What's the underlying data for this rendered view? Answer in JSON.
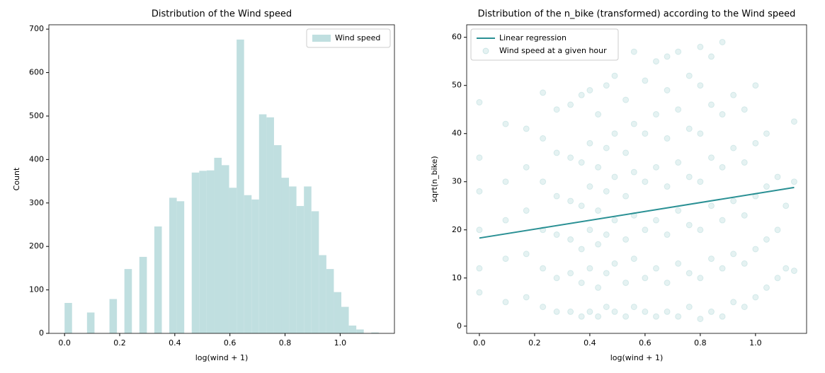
{
  "chart_data": [
    {
      "type": "histogram",
      "title": "Distribution of the Wind speed",
      "xlabel": "log(wind + 1)",
      "ylabel": "Count",
      "bins": [
        0,
        0.0271,
        0.0543,
        0.0814,
        0.1086,
        0.1357,
        0.1629,
        0.19,
        0.2171,
        0.2443,
        0.2714,
        0.2986,
        0.3257,
        0.3529,
        0.38,
        0.4071,
        0.4343,
        0.4614,
        0.4886,
        0.5157,
        0.5429,
        0.57,
        0.5971,
        0.6243,
        0.6514,
        0.6786,
        0.7057,
        0.7329,
        0.76,
        0.7871,
        0.8143,
        0.8414,
        0.8686,
        0.8957,
        0.9229,
        0.95,
        0.9771,
        1.0043,
        1.0314,
        1.0586,
        1.0857,
        1.1129,
        1.14
      ],
      "series": [
        {
          "name": "Wind speed",
          "color": "#c0dfe0",
          "values": [
            70,
            0,
            0,
            48,
            0,
            0,
            79,
            0,
            148,
            0,
            176,
            0,
            246,
            0,
            312,
            304,
            0,
            370,
            374,
            375,
            404,
            387,
            335,
            676,
            318,
            308,
            504,
            497,
            433,
            358,
            338,
            293,
            338,
            281,
            180,
            148,
            95,
            61,
            18,
            9,
            0,
            2
          ]
        }
      ],
      "xlim": [
        -0.057,
        1.197
      ],
      "ylim": [
        0,
        710
      ],
      "xticks": [
        {
          "value": 0,
          "label": "0.0"
        },
        {
          "value": 0.2,
          "label": "0.2"
        },
        {
          "value": 0.4,
          "label": "0.4"
        },
        {
          "value": 0.6,
          "label": "0.6"
        },
        {
          "value": 0.8,
          "label": "0.8"
        },
        {
          "value": 1.0,
          "label": "1.0"
        }
      ],
      "yticks": [
        0,
        100,
        200,
        300,
        400,
        500,
        600,
        700
      ],
      "legend": "upper right"
    },
    {
      "type": "scatter",
      "title": "Distribution of the n_bike (transformed) according to the Wind speed",
      "xlabel": "log(wind + 1)",
      "ylabel": "sqrt(n_bike)",
      "series": [
        {
          "name": "Linear regression",
          "type": "line",
          "color": "#2a9094",
          "x": [
            0,
            1.14
          ],
          "values": [
            18.3,
            28.8
          ]
        },
        {
          "name": "Wind speed at a given hour",
          "type": "scatter",
          "color": "#008080",
          "x": [
            0,
            0,
            0,
            0,
            0,
            0,
            0.095,
            0.095,
            0.095,
            0.095,
            0.095,
            0.17,
            0.17,
            0.17,
            0.17,
            0.17,
            0.23,
            0.23,
            0.23,
            0.23,
            0.23,
            0.23,
            0.28,
            0.28,
            0.28,
            0.28,
            0.28,
            0.28,
            0.33,
            0.33,
            0.33,
            0.33,
            0.33,
            0.33,
            0.37,
            0.37,
            0.37,
            0.37,
            0.37,
            0.37,
            0.4,
            0.4,
            0.4,
            0.4,
            0.4,
            0.4,
            0.43,
            0.43,
            0.43,
            0.43,
            0.43,
            0.43,
            0.46,
            0.46,
            0.46,
            0.46,
            0.46,
            0.46,
            0.49,
            0.49,
            0.49,
            0.49,
            0.49,
            0.49,
            0.53,
            0.53,
            0.53,
            0.53,
            0.53,
            0.53,
            0.56,
            0.56,
            0.56,
            0.56,
            0.56,
            0.56,
            0.6,
            0.6,
            0.6,
            0.6,
            0.6,
            0.6,
            0.64,
            0.64,
            0.64,
            0.64,
            0.64,
            0.64,
            0.68,
            0.68,
            0.68,
            0.68,
            0.68,
            0.68,
            0.68,
            0.72,
            0.72,
            0.72,
            0.72,
            0.72,
            0.72,
            0.76,
            0.76,
            0.76,
            0.76,
            0.76,
            0.76,
            0.8,
            0.8,
            0.8,
            0.8,
            0.8,
            0.8,
            0.8,
            0.84,
            0.84,
            0.84,
            0.84,
            0.84,
            0.84,
            0.88,
            0.88,
            0.88,
            0.88,
            0.88,
            0.88,
            0.92,
            0.92,
            0.92,
            0.92,
            0.92,
            0.96,
            0.96,
            0.96,
            0.96,
            0.96,
            1.0,
            1.0,
            1.0,
            1.0,
            1.0,
            1.04,
            1.04,
            1.04,
            1.04,
            1.08,
            1.08,
            1.08,
            1.11,
            1.11,
            1.14,
            1.14,
            1.14
          ],
          "values": [
            7,
            12,
            20,
            28,
            35,
            46.5,
            5,
            14,
            22,
            30,
            42,
            6,
            15,
            24,
            33,
            41,
            4,
            12,
            20,
            30,
            39,
            48.5,
            3,
            10,
            19,
            27,
            36,
            45,
            3,
            11,
            18,
            26,
            35,
            46,
            2,
            9,
            16,
            25,
            34,
            48,
            3,
            12,
            20,
            29,
            38,
            49,
            2,
            8,
            17,
            24,
            33,
            44,
            4,
            11,
            19,
            28,
            37,
            50,
            3,
            13,
            22,
            31,
            40,
            52,
            2,
            9,
            18,
            27,
            36,
            47,
            4,
            14,
            23,
            32,
            42,
            57,
            3,
            10,
            20,
            30,
            40,
            51,
            2,
            12,
            22,
            33,
            44,
            55,
            3,
            9,
            19,
            29,
            39,
            49,
            56,
            2,
            13,
            24,
            34,
            45,
            57,
            4,
            11,
            21,
            31,
            41,
            52,
            1.5,
            10,
            20,
            30,
            40,
            50,
            58,
            3,
            14,
            25,
            35,
            46,
            56,
            2,
            12,
            22,
            33,
            44,
            59,
            5,
            15,
            26,
            37,
            48,
            4,
            13,
            23,
            34,
            45,
            6,
            16,
            27,
            38,
            50,
            8,
            18,
            29,
            40,
            10,
            20,
            31,
            12,
            25,
            11.5,
            30,
            42.5
          ]
        }
      ],
      "xlim": [
        -0.046,
        1.185
      ],
      "ylim": [
        -1.5,
        62.6
      ],
      "xticks": [
        {
          "value": 0,
          "label": "0.0"
        },
        {
          "value": 0.2,
          "label": "0.2"
        },
        {
          "value": 0.4,
          "label": "0.4"
        },
        {
          "value": 0.6,
          "label": "0.6"
        },
        {
          "value": 0.8,
          "label": "0.8"
        },
        {
          "value": 1.0,
          "label": "1.0"
        }
      ],
      "yticks": [
        0,
        10,
        20,
        30,
        40,
        50,
        60
      ],
      "legend": "upper left"
    }
  ]
}
